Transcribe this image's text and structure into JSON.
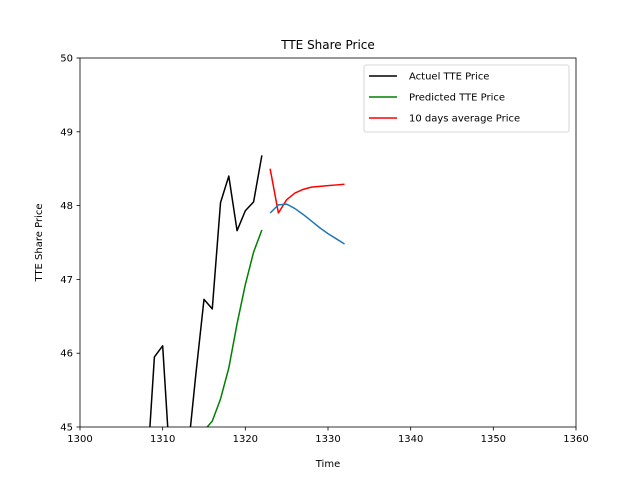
{
  "chart_data": {
    "type": "line",
    "title": "TTE Share Price",
    "xlabel": "Time",
    "ylabel": "TTE Share Price",
    "xlim": [
      1300,
      1360
    ],
    "ylim": [
      45,
      50
    ],
    "xticks": [
      1300,
      1310,
      1320,
      1330,
      1340,
      1350,
      1360
    ],
    "yticks": [
      45,
      46,
      47,
      48,
      49,
      50
    ],
    "grid": false,
    "legend_position": "top-right",
    "series": [
      {
        "name": "Actuel TTE Price",
        "color": "#000000",
        "x": [
          1308,
          1309,
          1310,
          1311,
          1312,
          1313,
          1314,
          1315,
          1316,
          1317,
          1318,
          1319,
          1320,
          1321,
          1322
        ],
        "y": [
          44.2,
          45.95,
          46.1,
          44.3,
          44.2,
          44.6,
          45.7,
          46.73,
          46.6,
          48.04,
          48.4,
          47.66,
          47.93,
          48.05,
          48.68
        ]
      },
      {
        "name": "Predicted TTE Price",
        "color": "#008000",
        "x": [
          1314,
          1315,
          1316,
          1317,
          1318,
          1319,
          1320,
          1321,
          1322
        ],
        "y": [
          44.75,
          44.95,
          45.08,
          45.38,
          45.8,
          46.4,
          46.93,
          47.37,
          47.67
        ]
      },
      {
        "name": "10 days average Price",
        "color": "#ff0000",
        "x": [
          1323,
          1324,
          1325,
          1326,
          1327,
          1328,
          1329,
          1330,
          1331,
          1332
        ],
        "y": [
          48.5,
          47.9,
          48.08,
          48.17,
          48.22,
          48.25,
          48.26,
          48.27,
          48.28,
          48.29
        ]
      },
      {
        "color": "#1f77b4",
        "x": [
          1323,
          1324,
          1325,
          1326,
          1327,
          1328,
          1329,
          1330,
          1331,
          1332
        ],
        "y": [
          47.9,
          48.01,
          48.02,
          47.96,
          47.88,
          47.79,
          47.7,
          47.62,
          47.55,
          47.48
        ]
      }
    ]
  }
}
